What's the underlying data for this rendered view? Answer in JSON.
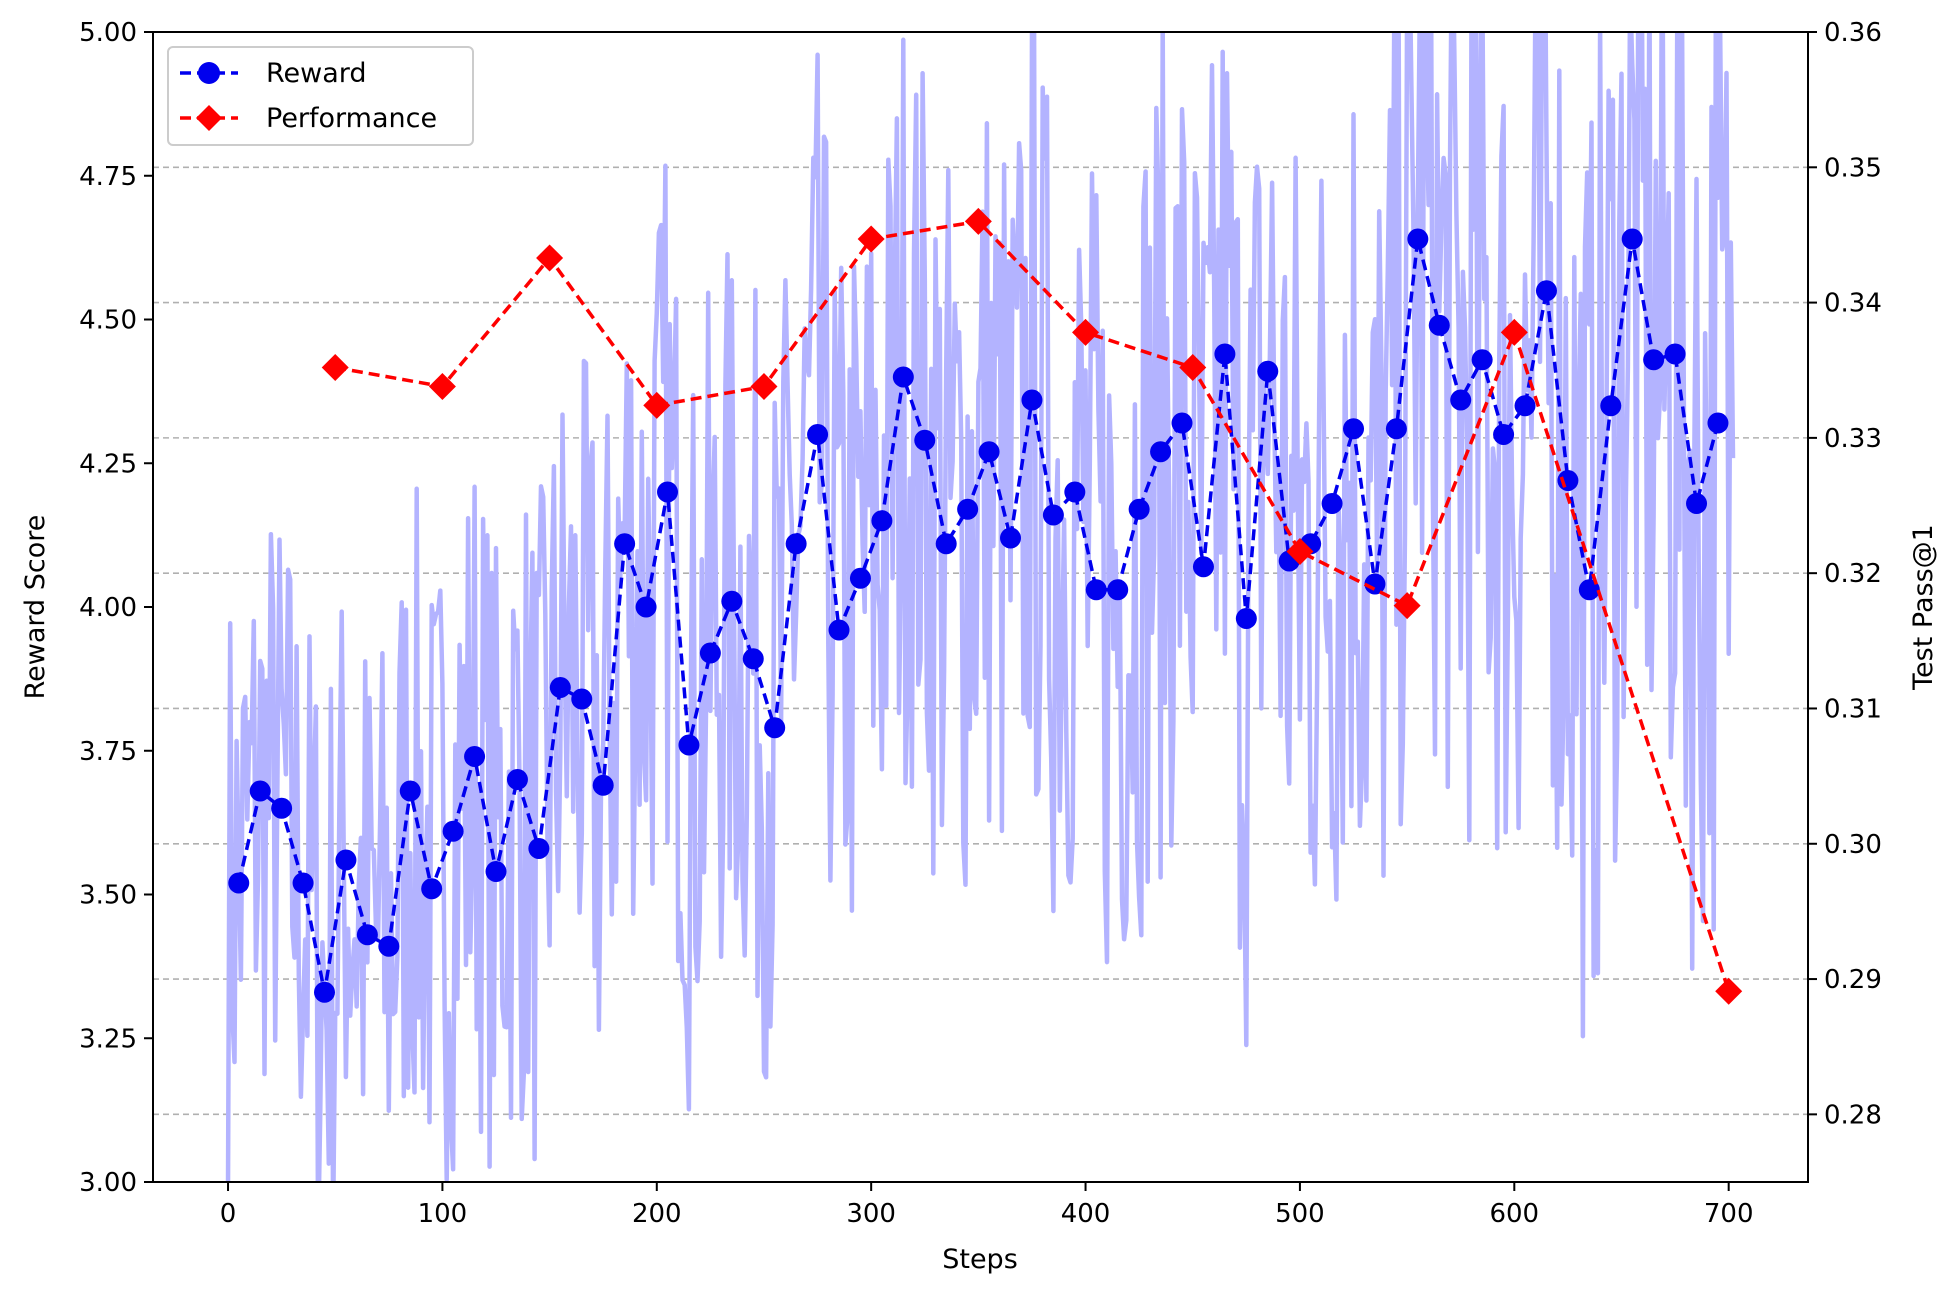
{
  "chart_data": {
    "type": "line",
    "xlabel": "Steps",
    "ylabel_left": "Reward Score",
    "ylabel_right": "Test Pass@1",
    "xlim": [
      -35,
      737
    ],
    "ylim_left": [
      3.0,
      5.0
    ],
    "ylim_right": [
      0.275,
      0.36
    ],
    "x_ticks": [
      0,
      100,
      200,
      300,
      400,
      500,
      600,
      700
    ],
    "x_tick_labels": [
      "0",
      "100",
      "200",
      "300",
      "400",
      "500",
      "600",
      "700"
    ],
    "y_left_ticks": [
      3.0,
      3.25,
      3.5,
      3.75,
      4.0,
      4.25,
      4.5,
      4.75,
      5.0
    ],
    "y_left_tick_labels": [
      "3.00",
      "3.25",
      "3.50",
      "3.75",
      "4.00",
      "4.25",
      "4.50",
      "4.75",
      "5.00"
    ],
    "y_right_ticks": [
      0.28,
      0.29,
      0.3,
      0.31,
      0.32,
      0.33,
      0.34,
      0.35,
      0.36
    ],
    "y_right_tick_labels": [
      "0.28",
      "0.29",
      "0.30",
      "0.31",
      "0.32",
      "0.33",
      "0.34",
      "0.35",
      "0.36"
    ],
    "grid": "horizontal dashed at right-axis ticks",
    "legend": {
      "placement": "top-left",
      "entries": [
        "Reward",
        "Performance"
      ]
    },
    "series": [
      {
        "name": "Reward",
        "axis": "left",
        "color": "#0000ee",
        "marker": "circle",
        "linestyle": "dashed",
        "x": [
          5,
          15,
          25,
          35,
          45,
          55,
          65,
          75,
          85,
          95,
          105,
          115,
          125,
          135,
          145,
          155,
          165,
          175,
          185,
          195,
          205,
          215,
          225,
          235,
          245,
          255,
          265,
          275,
          285,
          295,
          305,
          315,
          325,
          335,
          345,
          355,
          365,
          375,
          385,
          395,
          405,
          415,
          425,
          435,
          445,
          455,
          465,
          475,
          485,
          495,
          505,
          515,
          525,
          535,
          545,
          555,
          565,
          575,
          585,
          595,
          605,
          615,
          625,
          635,
          645,
          655,
          665,
          675,
          685,
          695
        ],
        "values": [
          3.52,
          3.68,
          3.65,
          3.52,
          3.33,
          3.56,
          3.43,
          3.41,
          3.68,
          3.51,
          3.61,
          3.74,
          3.54,
          3.7,
          3.58,
          3.86,
          3.84,
          3.69,
          4.11,
          4.0,
          4.2,
          3.76,
          3.92,
          4.01,
          3.91,
          3.79,
          4.11,
          4.3,
          3.96,
          4.05,
          4.15,
          4.4,
          4.29,
          4.11,
          4.17,
          4.27,
          4.12,
          4.36,
          4.16,
          4.2,
          4.03,
          4.03,
          4.17,
          4.27,
          4.32,
          4.07,
          4.44,
          3.98,
          4.41,
          4.08,
          4.11,
          4.18,
          4.31,
          4.04,
          4.31,
          4.64,
          4.49,
          4.36,
          4.43,
          4.3,
          4.35,
          4.55,
          4.22,
          4.03,
          4.35,
          4.64,
          4.43,
          4.44,
          4.18,
          4.32
        ]
      },
      {
        "name": "Performance",
        "axis": "right",
        "color": "#ff0000",
        "marker": "diamond",
        "linestyle": "dashed",
        "x": [
          50,
          100,
          150,
          200,
          250,
          300,
          350,
          400,
          450,
          500,
          550,
          600,
          700
        ],
        "values": [
          0.3352,
          0.3338,
          0.3433,
          0.3324,
          0.3338,
          0.3447,
          0.346,
          0.3378,
          0.3352,
          0.3216,
          0.3176,
          0.3378,
          0.2891
        ]
      },
      {
        "name": "",
        "axis": "left",
        "color": "#b3b3ff",
        "linestyle": "solid",
        "note_raw": "per-step raw reward, unlabeled",
        "x_start": 0,
        "x_end": 702,
        "noise_seed": 7,
        "noise_amplitude": 0.55
      }
    ]
  }
}
